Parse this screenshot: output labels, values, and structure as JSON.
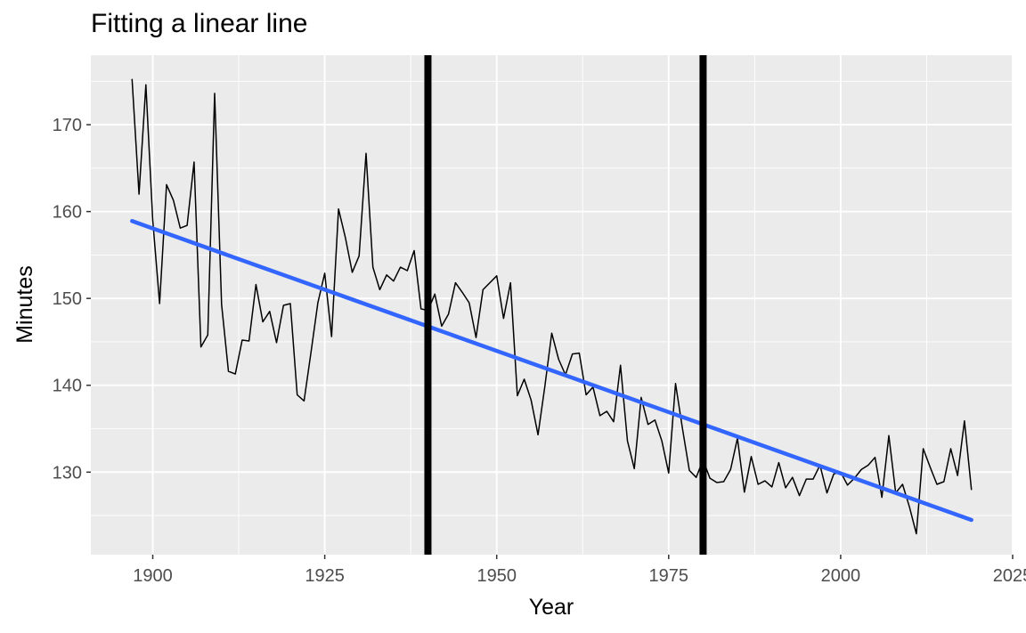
{
  "chart_data": {
    "type": "line",
    "title": "Fitting a linear line",
    "xlabel": "Year",
    "ylabel": "Minutes",
    "xlim": [
      1891,
      2025
    ],
    "ylim": [
      120.5,
      178
    ],
    "x_ticks": [
      1900,
      1925,
      1950,
      1975,
      2000,
      2025
    ],
    "y_ticks": [
      130,
      140,
      150,
      160,
      170
    ],
    "grid": true,
    "background": "#ebebeb",
    "vlines": [
      1940,
      1980
    ],
    "vline_color": "#000000",
    "series": [
      {
        "line_color": "#000000",
        "x": [
          1897,
          1898,
          1899,
          1900,
          1901,
          1902,
          1903,
          1904,
          1905,
          1906,
          1907,
          1908,
          1909,
          1910,
          1911,
          1912,
          1913,
          1914,
          1915,
          1916,
          1917,
          1918,
          1919,
          1920,
          1921,
          1922,
          1923,
          1924,
          1925,
          1926,
          1927,
          1928,
          1929,
          1930,
          1931,
          1932,
          1933,
          1934,
          1935,
          1936,
          1937,
          1938,
          1939,
          1940,
          1941,
          1942,
          1943,
          1944,
          1945,
          1946,
          1947,
          1948,
          1949,
          1950,
          1951,
          1952,
          1953,
          1954,
          1955,
          1956,
          1957,
          1958,
          1959,
          1960,
          1961,
          1962,
          1963,
          1964,
          1965,
          1966,
          1967,
          1968,
          1969,
          1970,
          1971,
          1972,
          1973,
          1974,
          1975,
          1976,
          1977,
          1978,
          1979,
          1980,
          1981,
          1982,
          1983,
          1984,
          1985,
          1986,
          1987,
          1988,
          1989,
          1990,
          1991,
          1992,
          1993,
          1994,
          1995,
          1996,
          1997,
          1998,
          1999,
          2000,
          2001,
          2002,
          2003,
          2004,
          2005,
          2006,
          2007,
          2008,
          2009,
          2010,
          2011,
          2012,
          2013,
          2014,
          2015,
          2016,
          2017,
          2018,
          2019
        ],
        "y": [
          175.2,
          162.0,
          174.6,
          159.0,
          149.4,
          163.1,
          161.3,
          158.1,
          158.4,
          165.7,
          144.4,
          145.8,
          173.6,
          149.3,
          141.6,
          141.3,
          145.2,
          145.1,
          151.6,
          147.3,
          148.5,
          144.9,
          149.2,
          149.4,
          138.9,
          138.2,
          143.8,
          149.5,
          152.9,
          145.6,
          160.3,
          157.0,
          153.0,
          154.9,
          166.7,
          153.6,
          151.0,
          152.7,
          152.0,
          153.6,
          153.2,
          155.5,
          148.8,
          148.6,
          150.5,
          146.8,
          148.2,
          151.8,
          150.7,
          149.5,
          145.5,
          151.0,
          151.8,
          152.6,
          147.7,
          151.8,
          138.8,
          140.7,
          138.3,
          134.3,
          139.9,
          146.0,
          143.0,
          141.2,
          143.6,
          143.7,
          138.9,
          139.8,
          136.5,
          137.0,
          135.8,
          142.3,
          133.6,
          130.4,
          138.6,
          135.5,
          136.0,
          133.6,
          129.9,
          140.2,
          135.0,
          130.2,
          129.4,
          131.4,
          129.3,
          128.8,
          128.9,
          130.3,
          133.9,
          127.7,
          131.8,
          128.6,
          129.0,
          128.3,
          131.1,
          128.2,
          129.4,
          127.3,
          129.2,
          129.2,
          130.8,
          127.6,
          129.8,
          130.0,
          128.5,
          129.3,
          130.3,
          130.8,
          131.7,
          127.1,
          134.2,
          127.6,
          128.6,
          126.0,
          122.9,
          132.7,
          130.6,
          128.6,
          128.9,
          132.7,
          129.6,
          135.9,
          128.0
        ]
      },
      {
        "line_color": "#3366ff",
        "x": [
          1897,
          2019
        ],
        "y": [
          158.9,
          124.5
        ]
      }
    ]
  }
}
